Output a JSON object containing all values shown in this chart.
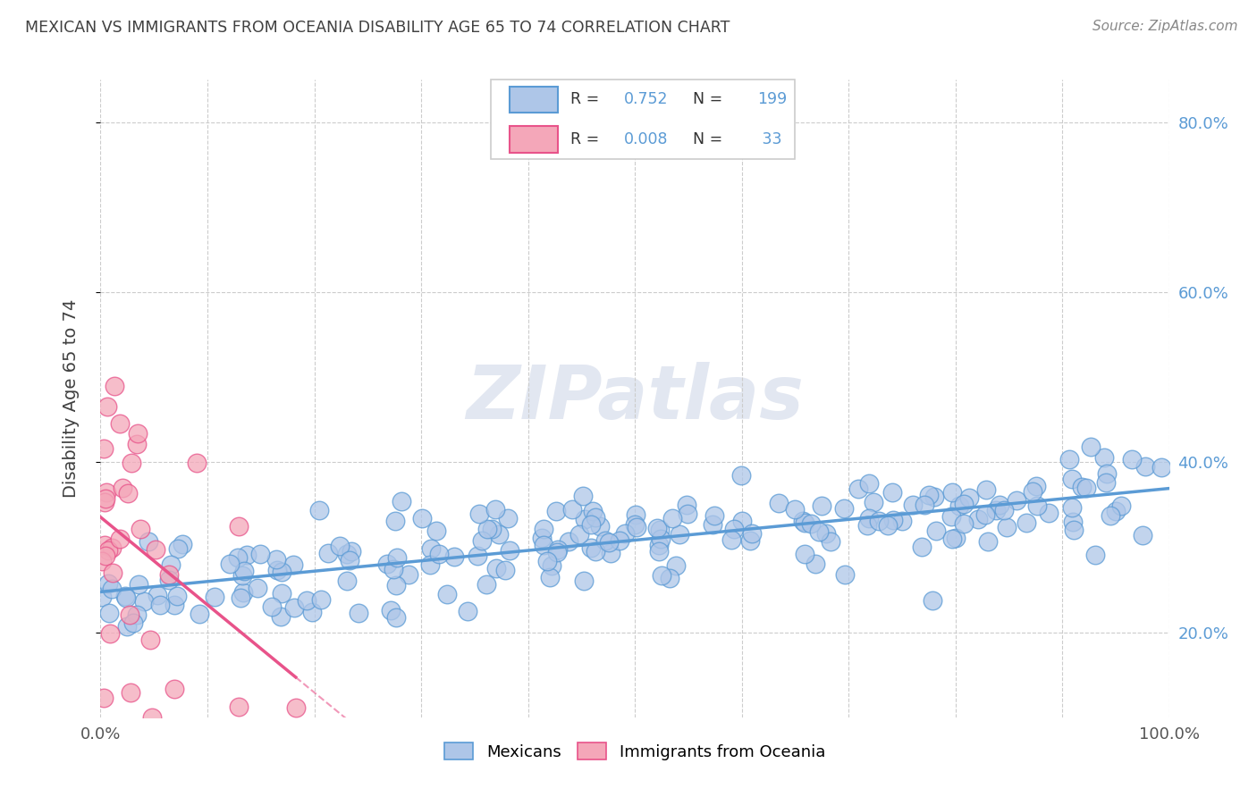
{
  "title": "MEXICAN VS IMMIGRANTS FROM OCEANIA DISABILITY AGE 65 TO 74 CORRELATION CHART",
  "source": "Source: ZipAtlas.com",
  "ylabel": "Disability Age 65 to 74",
  "xlim": [
    0.0,
    1.0
  ],
  "ylim": [
    0.1,
    0.85
  ],
  "yticks": [
    0.2,
    0.4,
    0.6,
    0.8
  ],
  "ytick_labels": [
    "20.0%",
    "40.0%",
    "60.0%",
    "80.0%"
  ],
  "xticks": [
    0.0,
    0.1,
    0.2,
    0.3,
    0.4,
    0.5,
    0.6,
    0.7,
    0.8,
    0.9,
    1.0
  ],
  "xtick_labels": [
    "0.0%",
    "",
    "",
    "",
    "",
    "",
    "",
    "",
    "",
    "",
    "100.0%"
  ],
  "blue_color": "#5b9bd5",
  "blue_face": "#aec6e8",
  "pink_color": "#e8538a",
  "pink_face": "#f4a7b9",
  "R_blue": 0.752,
  "N_blue": 199,
  "R_pink": 0.008,
  "N_pink": 33,
  "watermark": "ZIPatlas",
  "background_color": "#ffffff",
  "grid_color": "#cccccc",
  "title_color": "#404040",
  "source_color": "#888888",
  "blue_trend_start_y": 0.265,
  "blue_trend_end_y": 0.385,
  "pink_trend_y": 0.305,
  "legend_label_blue": "Mexicans",
  "legend_label_pink": "Immigrants from Oceania"
}
